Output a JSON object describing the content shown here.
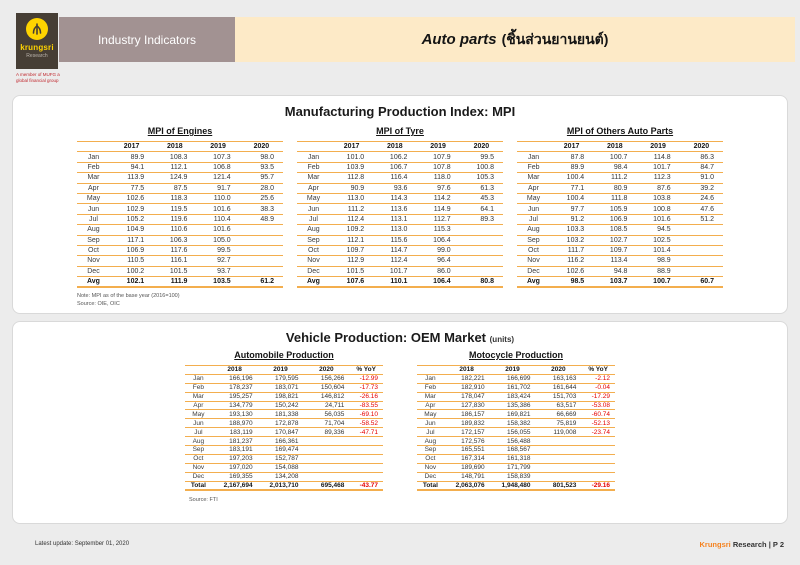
{
  "header": {
    "logo_brand": "krungsri",
    "logo_sub": "Research",
    "logo_tagline": "A member of MUFG a global financial group",
    "section_label": "Industry Indicators",
    "page_title_en": "Auto parts",
    "page_title_th": "(ชิ้นส่วนยานยนต์)"
  },
  "mpi_section": {
    "title": "Manufacturing Production Index: MPI",
    "note": "Note: MPI as of the base year (2016=100)",
    "source": "Source: OIE, OIC",
    "columns": [
      "2017",
      "2018",
      "2019",
      "2020"
    ],
    "tables": [
      {
        "title": "MPI of Engines",
        "rows": [
          [
            "Jan",
            "89.9",
            "108.3",
            "107.3",
            "98.0"
          ],
          [
            "Feb",
            "94.1",
            "112.1",
            "106.8",
            "93.5"
          ],
          [
            "Mar",
            "113.9",
            "124.9",
            "121.4",
            "95.7"
          ],
          [
            "Apr",
            "77.5",
            "87.5",
            "91.7",
            "28.0"
          ],
          [
            "May",
            "102.6",
            "118.3",
            "110.0",
            "25.6"
          ],
          [
            "Jun",
            "102.9",
            "119.5",
            "101.6",
            "38.3"
          ],
          [
            "Jul",
            "105.2",
            "119.6",
            "110.4",
            "48.9"
          ],
          [
            "Aug",
            "104.9",
            "110.6",
            "101.6",
            ""
          ],
          [
            "Sep",
            "117.1",
            "106.3",
            "105.0",
            ""
          ],
          [
            "Oct",
            "106.9",
            "117.6",
            "99.5",
            ""
          ],
          [
            "Nov",
            "110.5",
            "116.1",
            "92.7",
            ""
          ],
          [
            "Dec",
            "100.2",
            "101.5",
            "93.7",
            ""
          ],
          [
            "Avg",
            "102.1",
            "111.9",
            "103.5",
            "61.2"
          ]
        ]
      },
      {
        "title": "MPI of Tyre",
        "rows": [
          [
            "Jan",
            "101.0",
            "106.2",
            "107.9",
            "99.5"
          ],
          [
            "Feb",
            "103.9",
            "106.7",
            "107.8",
            "100.8"
          ],
          [
            "Mar",
            "112.8",
            "116.4",
            "118.0",
            "105.3"
          ],
          [
            "Apr",
            "90.9",
            "93.6",
            "97.6",
            "61.3"
          ],
          [
            "May",
            "113.0",
            "114.3",
            "114.2",
            "45.3"
          ],
          [
            "Jun",
            "111.2",
            "113.6",
            "114.9",
            "64.1"
          ],
          [
            "Jul",
            "112.4",
            "113.1",
            "112.7",
            "89.3"
          ],
          [
            "Aug",
            "109.2",
            "113.0",
            "115.3",
            ""
          ],
          [
            "Sep",
            "112.1",
            "115.6",
            "106.4",
            ""
          ],
          [
            "Oct",
            "109.7",
            "114.7",
            "99.0",
            ""
          ],
          [
            "Nov",
            "112.9",
            "112.4",
            "96.4",
            ""
          ],
          [
            "Dec",
            "101.5",
            "101.7",
            "86.0",
            ""
          ],
          [
            "Avg",
            "107.6",
            "110.1",
            "106.4",
            "80.8"
          ]
        ]
      },
      {
        "title": "MPI of Others Auto Parts",
        "rows": [
          [
            "Jan",
            "87.8",
            "100.7",
            "114.8",
            "86.3"
          ],
          [
            "Feb",
            "89.9",
            "98.4",
            "101.7",
            "84.7"
          ],
          [
            "Mar",
            "100.4",
            "111.2",
            "112.3",
            "91.0"
          ],
          [
            "Apr",
            "77.1",
            "80.9",
            "87.6",
            "39.2"
          ],
          [
            "May",
            "100.4",
            "111.8",
            "103.8",
            "24.6"
          ],
          [
            "Jun",
            "97.7",
            "105.9",
            "100.8",
            "47.6"
          ],
          [
            "Jul",
            "91.2",
            "106.9",
            "101.6",
            "51.2"
          ],
          [
            "Aug",
            "103.3",
            "108.5",
            "94.5",
            ""
          ],
          [
            "Sep",
            "103.2",
            "102.7",
            "102.5",
            ""
          ],
          [
            "Oct",
            "111.7",
            "109.7",
            "101.4",
            ""
          ],
          [
            "Nov",
            "116.2",
            "113.4",
            "98.9",
            ""
          ],
          [
            "Dec",
            "102.6",
            "94.8",
            "88.9",
            ""
          ],
          [
            "Avg",
            "98.5",
            "103.7",
            "100.7",
            "60.7"
          ]
        ]
      }
    ]
  },
  "oem_section": {
    "title": "Vehicle Production: OEM Market",
    "title_suffix": "(units)",
    "source": "Source: FTI",
    "columns": [
      "2018",
      "2019",
      "2020",
      "% YoY"
    ],
    "tables": [
      {
        "title": "Automobile Production",
        "rows": [
          [
            "Jan",
            "166,196",
            "179,595",
            "156,266",
            "-12.99"
          ],
          [
            "Feb",
            "178,237",
            "183,071",
            "150,604",
            "-17.73"
          ],
          [
            "Mar",
            "195,257",
            "198,821",
            "146,812",
            "-26.16"
          ],
          [
            "Apr",
            "134,779",
            "150,242",
            "24,711",
            "-83.55"
          ],
          [
            "May",
            "193,130",
            "181,338",
            "56,035",
            "-69.10"
          ],
          [
            "Jun",
            "188,970",
            "172,878",
            "71,704",
            "-58.52"
          ],
          [
            "Jul",
            "183,119",
            "170,847",
            "89,336",
            "-47.71"
          ],
          [
            "Aug",
            "181,237",
            "166,361",
            "",
            ""
          ],
          [
            "Sep",
            "183,191",
            "169,474",
            "",
            ""
          ],
          [
            "Oct",
            "197,203",
            "152,787",
            "",
            ""
          ],
          [
            "Nov",
            "197,020",
            "154,088",
            "",
            ""
          ],
          [
            "Dec",
            "169,355",
            "134,208",
            "",
            ""
          ],
          [
            "Total",
            "2,167,694",
            "2,013,710",
            "695,468",
            "-43.77"
          ]
        ]
      },
      {
        "title": "Motocycle Production",
        "rows": [
          [
            "Jan",
            "182,221",
            "166,699",
            "163,163",
            "-2.12"
          ],
          [
            "Feb",
            "182,910",
            "161,702",
            "161,644",
            "-0.04"
          ],
          [
            "Mar",
            "178,047",
            "183,424",
            "151,703",
            "-17.29"
          ],
          [
            "Apr",
            "127,830",
            "135,386",
            "63,517",
            "-53.08"
          ],
          [
            "May",
            "186,157",
            "169,821",
            "66,669",
            "-60.74"
          ],
          [
            "Jun",
            "189,832",
            "158,382",
            "75,819",
            "-52.13"
          ],
          [
            "Jul",
            "172,157",
            "156,055",
            "119,008",
            "-23.74"
          ],
          [
            "Aug",
            "172,576",
            "156,488",
            "",
            ""
          ],
          [
            "Sep",
            "165,551",
            "168,567",
            "",
            ""
          ],
          [
            "Oct",
            "167,314",
            "161,318",
            "",
            ""
          ],
          [
            "Nov",
            "189,690",
            "171,799",
            "",
            ""
          ],
          [
            "Dec",
            "148,791",
            "158,839",
            "",
            ""
          ],
          [
            "Total",
            "2,063,076",
            "1,948,480",
            "801,523",
            "-29.16"
          ]
        ]
      }
    ]
  },
  "footer": {
    "left": "Latest update: September 01, 2020",
    "brand": "Krungsri",
    "brand_rest": " Research |  P 2"
  }
}
